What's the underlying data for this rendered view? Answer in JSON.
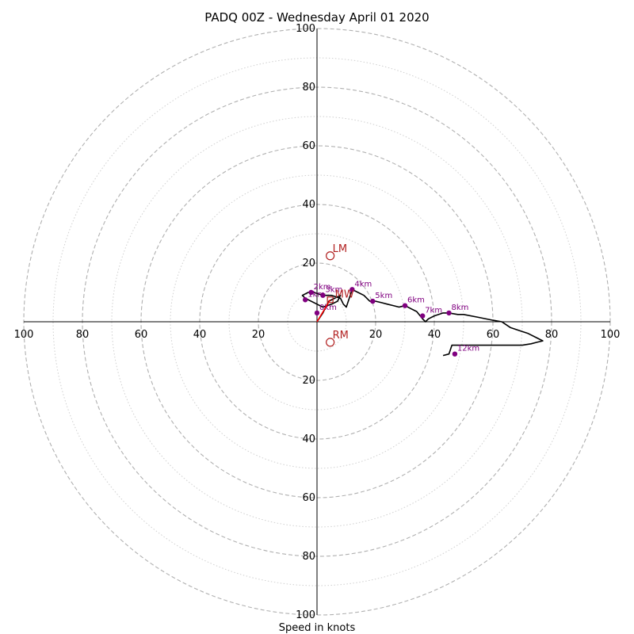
{
  "chart_data": {
    "type": "scatter",
    "title": "PADQ 00Z - Wednesday April 01 2020",
    "xlabel": "Speed in knots",
    "max_speed": 100,
    "ring_major_step": 20,
    "ring_minor_step": 10,
    "x_tick_labels": [
      "100",
      "80",
      "60",
      "40",
      "20",
      "20",
      "40",
      "60",
      "80",
      "100"
    ],
    "y_tick_labels": [
      "100",
      "80",
      "60",
      "40",
      "20",
      "20",
      "40",
      "60",
      "80",
      "100"
    ],
    "trace": [
      [
        0,
        0
      ],
      [
        2,
        3
      ],
      [
        4,
        7
      ],
      [
        6,
        8
      ],
      [
        8,
        9
      ],
      [
        7,
        7
      ],
      [
        5,
        6
      ],
      [
        2,
        5
      ],
      [
        0,
        6
      ],
      [
        -4,
        8
      ],
      [
        -5,
        9
      ],
      [
        -3,
        10
      ],
      [
        -1,
        10
      ],
      [
        2,
        9
      ],
      [
        5,
        9
      ],
      [
        8,
        8
      ],
      [
        9,
        6
      ],
      [
        10,
        5
      ],
      [
        11,
        8
      ],
      [
        12,
        11
      ],
      [
        14,
        10
      ],
      [
        16,
        9
      ],
      [
        18,
        7
      ],
      [
        20,
        7
      ],
      [
        22,
        6.5
      ],
      [
        24,
        6
      ],
      [
        26,
        5.5
      ],
      [
        28,
        5
      ],
      [
        30,
        5.5
      ],
      [
        32,
        4.5
      ],
      [
        34,
        3.5
      ],
      [
        36,
        1
      ],
      [
        37,
        0
      ],
      [
        38,
        1
      ],
      [
        40,
        2
      ],
      [
        43,
        3
      ],
      [
        45,
        3
      ],
      [
        48,
        2.5
      ],
      [
        50,
        2.5
      ],
      [
        55,
        1.5
      ],
      [
        60,
        0.5
      ],
      [
        63,
        0
      ],
      [
        66,
        -2
      ],
      [
        69,
        -3
      ],
      [
        72,
        -4
      ],
      [
        75,
        -5.5
      ],
      [
        77,
        -6.5
      ],
      [
        75,
        -7
      ],
      [
        73,
        -7.5
      ],
      [
        70,
        -8
      ],
      [
        65,
        -8
      ],
      [
        60,
        -8
      ],
      [
        55,
        -8
      ],
      [
        50,
        -8
      ],
      [
        46,
        -8
      ],
      [
        45,
        -11
      ],
      [
        43,
        -11.5
      ]
    ],
    "height_markers": [
      {
        "label": "0km",
        "x": 0,
        "y": 3
      },
      {
        "label": "1km",
        "x": -4,
        "y": 7.5
      },
      {
        "label": "2km",
        "x": -2,
        "y": 10
      },
      {
        "label": "3km",
        "x": 2,
        "y": 9
      },
      {
        "label": "4km",
        "x": 12,
        "y": 11
      },
      {
        "label": "5km",
        "x": 19,
        "y": 7
      },
      {
        "label": "6km",
        "x": 30,
        "y": 5.5
      },
      {
        "label": "7km",
        "x": 36,
        "y": 2
      },
      {
        "label": "8km",
        "x": 45,
        "y": 3
      },
      {
        "label": "12km",
        "x": 47,
        "y": -11
      }
    ],
    "motion_markers": [
      {
        "label": "LM",
        "x": 4.5,
        "y": 22.5
      },
      {
        "label": "RM",
        "x": 4.5,
        "y": -7
      },
      {
        "label": "MW",
        "x": 4.5,
        "y": 7.5
      }
    ],
    "colors": {
      "trace": "#000000",
      "height_marker": "#800080",
      "motion_marker": "#b22222",
      "shear_vector": "#ff0000",
      "major_ring": "#b0b0b0",
      "minor_ring": "#cfcfcf"
    }
  }
}
